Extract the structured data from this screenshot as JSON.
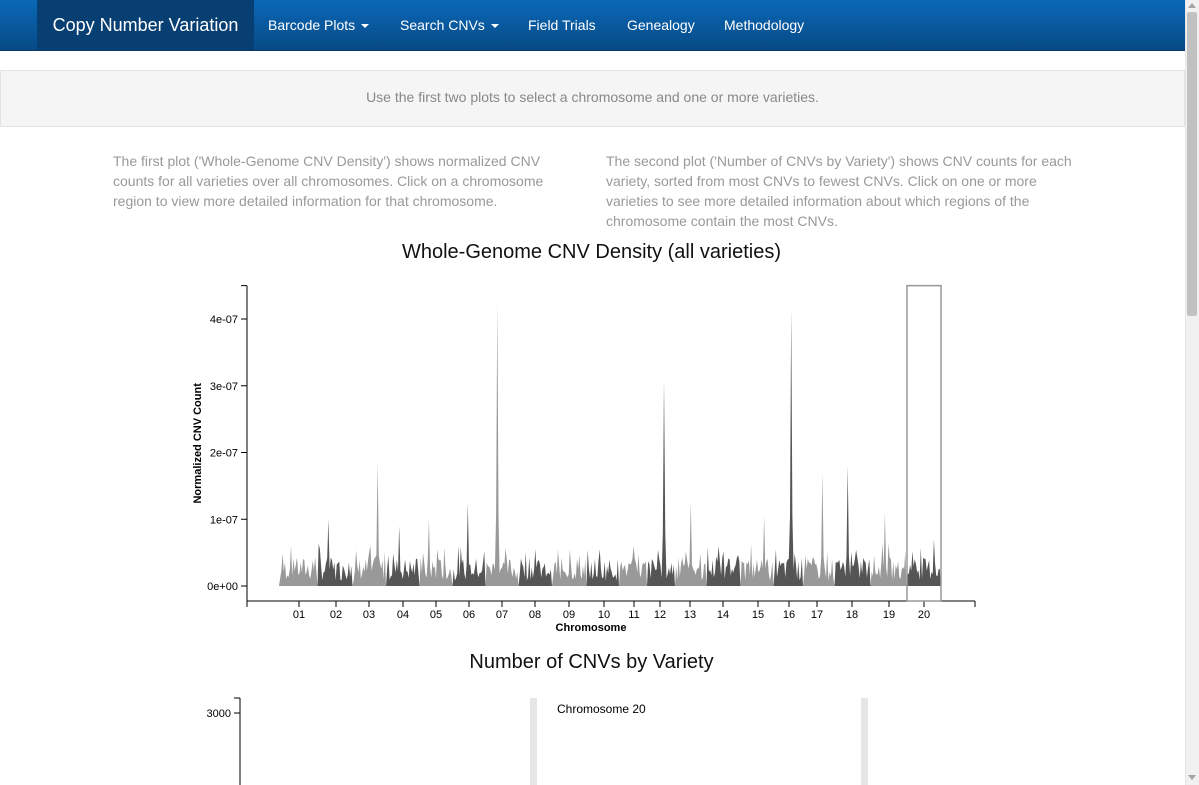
{
  "navbar": {
    "brand": "Copy Number Variation",
    "items": [
      {
        "label": "Barcode Plots",
        "dropdown": true
      },
      {
        "label": "Search CNVs",
        "dropdown": true
      },
      {
        "label": "Field Trials",
        "dropdown": false
      },
      {
        "label": "Genealogy",
        "dropdown": false
      },
      {
        "label": "Methodology",
        "dropdown": false
      }
    ]
  },
  "instructions": "Use the first two plots to select a chromosome and one or more varieties.",
  "descriptions": {
    "left": "The first plot ('Whole-Genome CNV Density') shows normalized CNV counts for all varieties over all chromosomes. Click on a chromosome region to view more detailed information for that chromosome.",
    "right": "The second plot ('Number of CNVs by Variety') shows CNV counts for each variety, sorted from most CNVs to fewest CNVs. Click on one or more varieties to see more detailed information about which regions of the chromosome contain the most CNVs."
  },
  "chart_data": [
    {
      "type": "area",
      "title": "Whole-Genome CNV Density (all varieties)",
      "xlabel": "Chromosome",
      "ylabel": "Normalized CNV Count",
      "ylim": [
        0,
        4.5e-07
      ],
      "yticks": [
        "0e+00",
        "1e-07",
        "2e-07",
        "3e-07",
        "4e-07"
      ],
      "categories": [
        "01",
        "02",
        "03",
        "04",
        "05",
        "06",
        "07",
        "08",
        "09",
        "10",
        "11",
        "12",
        "13",
        "14",
        "15",
        "16",
        "17",
        "18",
        "19",
        "20"
      ],
      "selected": "20",
      "peaks": [
        6e-08,
        1e-07,
        1.85e-07,
        9e-08,
        1e-07,
        1.25e-07,
        4.25e-07,
        5.5e-08,
        5.5e-08,
        5.5e-08,
        6e-08,
        3.1e-07,
        1.25e-07,
        6e-08,
        1.05e-07,
        4.15e-07,
        1.7e-07,
        1.8e-07,
        1.1e-07,
        7e-08
      ],
      "colors": {
        "light": "#999999",
        "dark": "#555555"
      }
    },
    {
      "type": "bar",
      "title": "Number of CNVs by Variety",
      "yticks": [
        "3000"
      ],
      "annotation": "Chromosome 20"
    }
  ]
}
